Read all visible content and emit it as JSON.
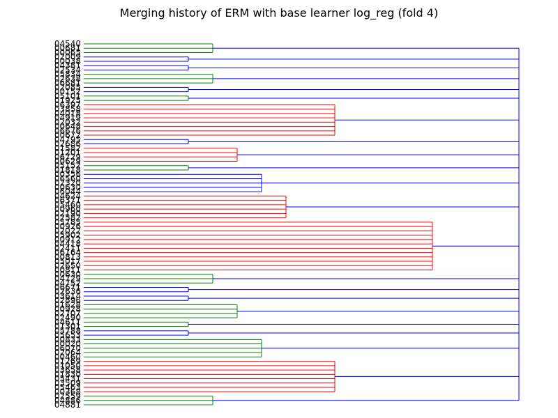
{
  "chart_data": {
    "type": "dendrogram",
    "orientation": "left",
    "title": "Merging history of ERM with base learner log_reg (fold 4)",
    "xlabel": "",
    "ylabel": "",
    "grid": false,
    "legend": "none",
    "colors": {
      "root": "#0000ff",
      "cluster_a": "#008000",
      "cluster_b": "#ff0000"
    },
    "leaves": [
      "04540",
      "00681",
      "00065",
      "02009",
      "00038",
      "04381",
      "02534",
      "05834",
      "02638",
      "06681",
      "02085",
      "00152",
      "05101",
      "01925",
      "06397",
      "03858",
      "04018",
      "04919",
      "02032",
      "00648",
      "06676",
      "00672",
      "04795",
      "02686",
      "01582",
      "01201",
      "06729",
      "00629",
      "05152",
      "01818",
      "00356",
      "06560",
      "02320",
      "00630",
      "06044",
      "04624",
      "06371",
      "05460",
      "00960",
      "02190",
      "02582",
      "05785",
      "00926",
      "02022",
      "05902",
      "00912",
      "04418",
      "02411",
      "06164",
      "00813",
      "05017",
      "02650",
      "00811",
      "00630",
      "04729",
      "04752",
      "06671",
      "02636",
      "03614",
      "02896",
      "01628",
      "00928",
      "02707",
      "02490",
      "04611",
      "01301",
      "05788",
      "05653",
      "00833",
      "00020",
      "06070",
      "02064",
      "00460",
      "01269",
      "01050",
      "03658",
      "01830",
      "05431",
      "03509",
      "05463",
      "00368",
      "02559",
      "04886",
      "04881"
    ],
    "root_clusters": [
      {
        "leaves": [
          "04540",
          "00681",
          "00065"
        ],
        "color": "cluster_a"
      },
      {
        "leaves": [
          "02009",
          "00038"
        ],
        "color": "root"
      },
      {
        "leaves": [
          "04381",
          "02534"
        ],
        "color": "root"
      },
      {
        "leaves": [
          "05834",
          "02638",
          "06681"
        ],
        "color": "cluster_a"
      },
      {
        "leaves": [
          "02085",
          "00152"
        ],
        "color": "root"
      },
      {
        "leaves": [
          "05101",
          "01925"
        ],
        "color": "cluster_a"
      },
      {
        "leaves": [
          "06397",
          "03858",
          "04018",
          "04919",
          "02032",
          "00648",
          "06676",
          "00672"
        ],
        "color": "cluster_b"
      },
      {
        "leaves": [
          "04795",
          "02686"
        ],
        "color": "root"
      },
      {
        "leaves": [
          "01582",
          "01201",
          "06729",
          "00629"
        ],
        "color": "cluster_b"
      },
      {
        "leaves": [
          "05152",
          "01818"
        ],
        "color": "cluster_a"
      },
      {
        "leaves": [
          "00356",
          "06560",
          "02320",
          "00630",
          "06044"
        ],
        "color": "root"
      },
      {
        "leaves": [
          "04624",
          "06371",
          "05460",
          "00960",
          "02190",
          "02582"
        ],
        "color": "cluster_b"
      },
      {
        "leaves": [
          "05785",
          "00926",
          "02022",
          "05902",
          "00912",
          "04418",
          "02411",
          "06164",
          "00813",
          "05017",
          "02650",
          "00811"
        ],
        "color": "cluster_b"
      },
      {
        "leaves": [
          "00630",
          "04729",
          "04752"
        ],
        "color": "cluster_a"
      },
      {
        "leaves": [
          "06671",
          "02636"
        ],
        "color": "root"
      },
      {
        "leaves": [
          "03614",
          "02896"
        ],
        "color": "root"
      },
      {
        "leaves": [
          "01628",
          "00928",
          "02707",
          "02490"
        ],
        "color": "cluster_a"
      },
      {
        "leaves": [
          "04611",
          "01301"
        ],
        "color": "cluster_a"
      },
      {
        "leaves": [
          "05788",
          "05653"
        ],
        "color": "root"
      },
      {
        "leaves": [
          "00833",
          "00020",
          "06070",
          "02064",
          "00460"
        ],
        "color": "cluster_a"
      },
      {
        "leaves": [
          "01269",
          "01050",
          "03658",
          "01830",
          "05431",
          "03509",
          "05463",
          "00368"
        ],
        "color": "cluster_b"
      },
      {
        "leaves": [
          "02559",
          "04886",
          "04881"
        ],
        "color": "cluster_a"
      }
    ]
  }
}
